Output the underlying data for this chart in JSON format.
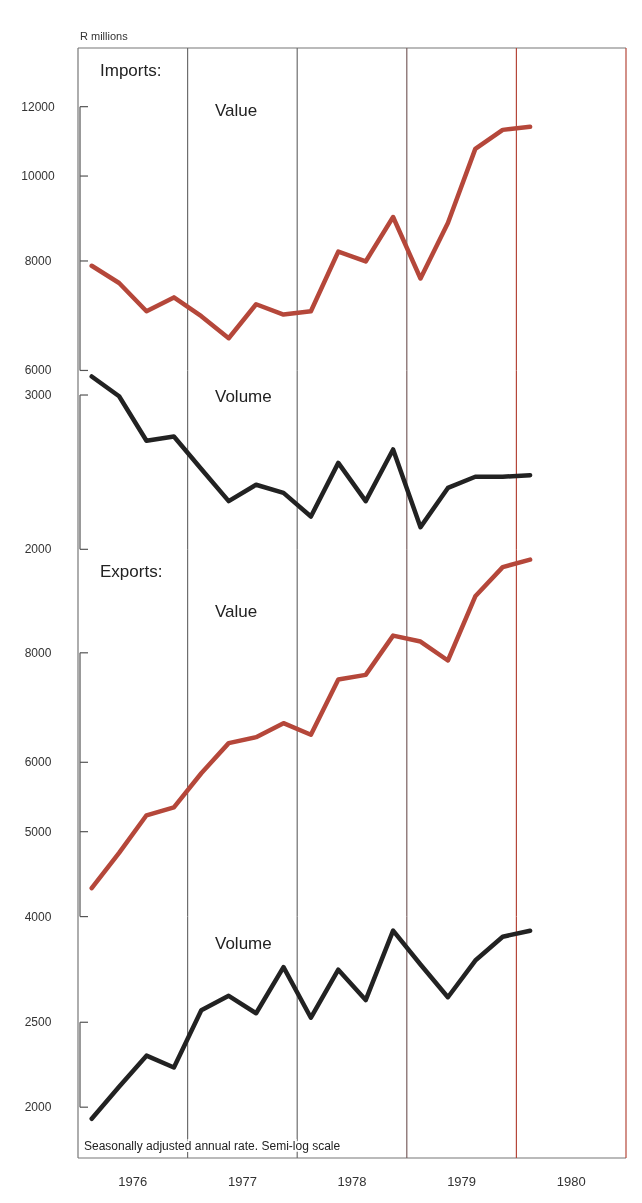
{
  "chart_data": [
    {
      "type": "line",
      "title": "Imports:",
      "ylabel": "R millions",
      "log": true,
      "tick_labels": "y",
      "xlim": [
        1976,
        1981
      ],
      "ylim": [
        6000,
        14000
      ],
      "yticks": [
        6000,
        8000,
        10000,
        12000
      ],
      "x": [
        1976.125,
        1976.375,
        1976.625,
        1976.875,
        1977.125,
        1977.375,
        1977.625,
        1977.875,
        1978.125,
        1978.375,
        1978.625,
        1978.875,
        1979.125,
        1979.375,
        1979.625,
        1979.875,
        1980.125
      ],
      "series": [
        {
          "name": "Value",
          "color": "#b5473a",
          "values": [
            7900,
            7550,
            7010,
            7270,
            6920,
            6530,
            7140,
            6950,
            7010,
            8200,
            7990,
            8980,
            7640,
            8840,
            10740,
            11290,
            11380
          ]
        }
      ],
      "ref_lines": [
        {
          "axis": "x",
          "value": 1977,
          "color": "#6e6e6e"
        },
        {
          "axis": "x",
          "value": 1978,
          "color": "#6e6e6e"
        },
        {
          "axis": "x",
          "value": 1979,
          "color": "#7a6060"
        },
        {
          "axis": "x",
          "value": 1980,
          "color": "#b5473a"
        }
      ]
    },
    {
      "type": "line",
      "log": true,
      "tick_labels": "y",
      "xlim": [
        1976,
        1981
      ],
      "ylim": [
        2000,
        3200
      ],
      "yticks": [
        2000,
        3000
      ],
      "x": [
        1976.125,
        1976.375,
        1976.625,
        1976.875,
        1977.125,
        1977.375,
        1977.625,
        1977.875,
        1978.125,
        1978.375,
        1978.625,
        1978.875,
        1979.125,
        1979.375,
        1979.625,
        1979.875,
        1980.125
      ],
      "series": [
        {
          "name": "Volume",
          "color": "#222222",
          "values": [
            3150,
            2990,
            2660,
            2690,
            2470,
            2270,
            2370,
            2320,
            2180,
            2510,
            2270,
            2600,
            2120,
            2350,
            2420,
            2420,
            2430
          ]
        }
      ],
      "ref_lines": [
        {
          "axis": "x",
          "value": 1977,
          "color": "#6e6e6e"
        },
        {
          "axis": "x",
          "value": 1978,
          "color": "#6e6e6e"
        },
        {
          "axis": "x",
          "value": 1979,
          "color": "#7a6060"
        },
        {
          "axis": "x",
          "value": 1980,
          "color": "#b5473a"
        }
      ]
    },
    {
      "type": "line",
      "title": "Exports:",
      "log": true,
      "tick_labels": "y",
      "xlim": [
        1976,
        1981
      ],
      "ylim": [
        4000,
        10500
      ],
      "yticks": [
        4000,
        5000,
        6000,
        8000
      ],
      "x": [
        1976.125,
        1976.375,
        1976.625,
        1976.875,
        1977.125,
        1977.375,
        1977.625,
        1977.875,
        1978.125,
        1978.375,
        1978.625,
        1978.875,
        1979.125,
        1979.375,
        1979.625,
        1979.875,
        1980.125
      ],
      "series": [
        {
          "name": "Value",
          "color": "#b5473a",
          "values": [
            4310,
            4730,
            5220,
            5330,
            5830,
            6310,
            6410,
            6650,
            6450,
            7460,
            7550,
            8370,
            8240,
            7840,
            9280,
            10020,
            10220
          ]
        }
      ],
      "ref_lines": [
        {
          "axis": "x",
          "value": 1977,
          "color": "#6e6e6e"
        },
        {
          "axis": "x",
          "value": 1978,
          "color": "#6e6e6e"
        },
        {
          "axis": "x",
          "value": 1979,
          "color": "#7a6060"
        },
        {
          "axis": "x",
          "value": 1980,
          "color": "#b5473a"
        }
      ]
    },
    {
      "type": "line",
      "log": true,
      "xlim": [
        1976,
        1981
      ],
      "ylim": [
        1750,
        3300
      ],
      "yticks": [
        2000,
        2500
      ],
      "xticks": [
        {
          "value": 1976.5,
          "label": "1976"
        },
        {
          "value": 1977.5,
          "label": "1977"
        },
        {
          "value": 1978.5,
          "label": "1978"
        },
        {
          "value": 1979.5,
          "label": "1979"
        },
        {
          "value": 1980.5,
          "label": "1980"
        }
      ],
      "x": [
        1976.125,
        1976.375,
        1976.625,
        1976.875,
        1977.125,
        1977.375,
        1977.625,
        1977.875,
        1978.125,
        1978.375,
        1978.625,
        1978.875,
        1979.125,
        1979.375,
        1979.625,
        1979.875,
        1980.125
      ],
      "series": [
        {
          "name": "Volume",
          "color": "#222222",
          "values": [
            1940,
            2110,
            2290,
            2220,
            2580,
            2680,
            2560,
            2890,
            2530,
            2870,
            2650,
            3180,
            2910,
            2670,
            2940,
            3130,
            3180
          ]
        }
      ],
      "ref_lines": [
        {
          "axis": "x",
          "value": 1977,
          "color": "#6e6e6e"
        },
        {
          "axis": "x",
          "value": 1978,
          "color": "#6e6e6e"
        },
        {
          "axis": "x",
          "value": 1979,
          "color": "#7a6060"
        },
        {
          "axis": "x",
          "value": 1980,
          "color": "#b5473a"
        }
      ],
      "annotations": [
        "Seasonally adjusted annual rate. Semi-log scale"
      ]
    }
  ]
}
